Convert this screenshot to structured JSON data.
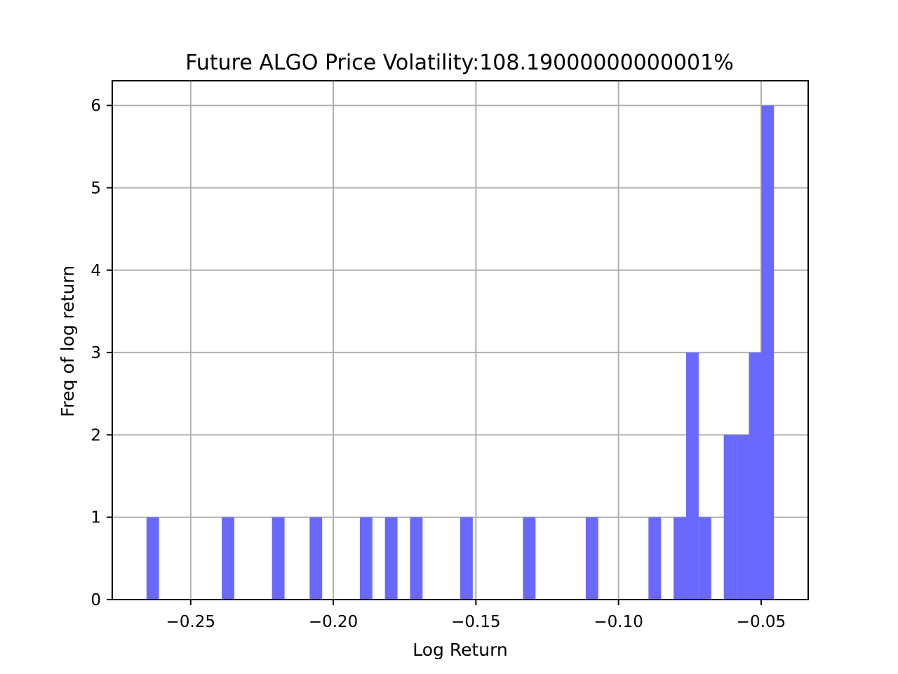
{
  "chart_data": {
    "type": "bar",
    "subtype": "histogram",
    "title": "Future ALGO Price Volatility:108.19000000000001%",
    "xlabel": "Log Return",
    "ylabel": "Freq of log return",
    "xlim": [
      -0.2775,
      -0.0335
    ],
    "ylim": [
      0,
      6.3
    ],
    "bin_width": 0.0044,
    "grid": true,
    "bar_color": "#6969ff",
    "xticks": [
      {
        "value": -0.25,
        "label": "−0.25"
      },
      {
        "value": -0.2,
        "label": "−0.20"
      },
      {
        "value": -0.15,
        "label": "−0.15"
      },
      {
        "value": -0.1,
        "label": "−0.10"
      },
      {
        "value": -0.05,
        "label": "−0.05"
      }
    ],
    "yticks": [
      {
        "value": 0,
        "label": "0"
      },
      {
        "value": 1,
        "label": "1"
      },
      {
        "value": 2,
        "label": "2"
      },
      {
        "value": 3,
        "label": "3"
      },
      {
        "value": 4,
        "label": "4"
      },
      {
        "value": 5,
        "label": "5"
      },
      {
        "value": 6,
        "label": "6"
      }
    ],
    "bins": [
      {
        "x0": -0.2655,
        "x1": -0.2611,
        "count": 1
      },
      {
        "x0": -0.2391,
        "x1": -0.2347,
        "count": 1
      },
      {
        "x0": -0.2215,
        "x1": -0.2171,
        "count": 1
      },
      {
        "x0": -0.2083,
        "x1": -0.2039,
        "count": 1
      },
      {
        "x0": -0.1907,
        "x1": -0.1863,
        "count": 1
      },
      {
        "x0": -0.1819,
        "x1": -0.1775,
        "count": 1
      },
      {
        "x0": -0.1731,
        "x1": -0.1687,
        "count": 1
      },
      {
        "x0": -0.1555,
        "x1": -0.1511,
        "count": 1
      },
      {
        "x0": -0.1335,
        "x1": -0.1291,
        "count": 1
      },
      {
        "x0": -0.1115,
        "x1": -0.1071,
        "count": 1
      },
      {
        "x0": -0.0895,
        "x1": -0.0851,
        "count": 1
      },
      {
        "x0": -0.0807,
        "x1": -0.0763,
        "count": 1
      },
      {
        "x0": -0.0763,
        "x1": -0.0719,
        "count": 3
      },
      {
        "x0": -0.0719,
        "x1": -0.0675,
        "count": 1
      },
      {
        "x0": -0.0631,
        "x1": -0.0587,
        "count": 2
      },
      {
        "x0": -0.0587,
        "x1": -0.0543,
        "count": 2
      },
      {
        "x0": -0.0543,
        "x1": -0.0499,
        "count": 3
      },
      {
        "x0": -0.0499,
        "x1": -0.0455,
        "count": 6
      }
    ]
  }
}
